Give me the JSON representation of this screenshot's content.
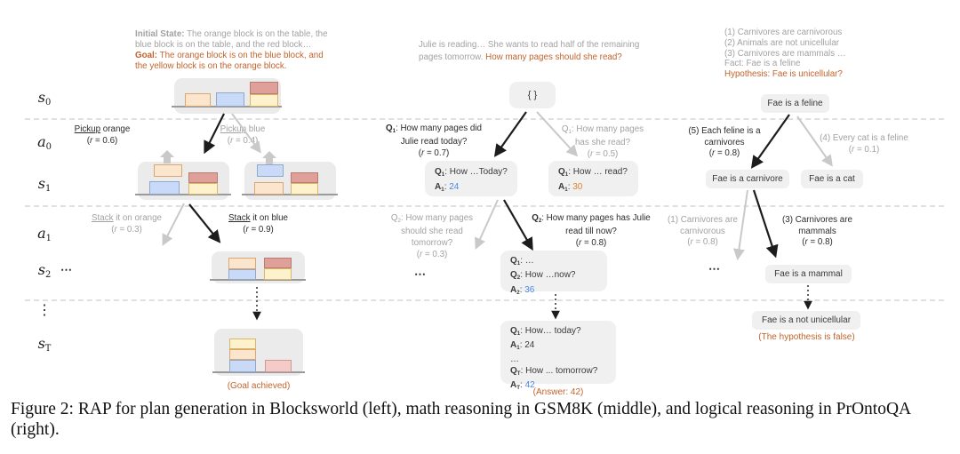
{
  "colors": {
    "gray": "#a2a2a2",
    "dark": "#2b2b2b",
    "orange": "#c2632b",
    "blue": "#4a86e8",
    "orangeval": "#e08330",
    "node_bg": "#f0f0f0",
    "container_bg": "#ebebeb",
    "block_orange": "#fce5cd",
    "block_orange_border": "#dda56f",
    "block_blue": "#c9daf8",
    "block_blue_border": "#8fa8cc",
    "block_red": "#dfa09a",
    "block_red_border": "#b97a72",
    "block_yellow": "#fdf2cc",
    "block_yellow_border": "#d8b868",
    "block_pink": "#f5cbc8",
    "block_pink_border": "#cc9a94",
    "arrow_dark": "#1c1c1c",
    "arrow_light": "#c9c9c9",
    "table_line": "#9a9a9a",
    "separator": "#e0e0e0"
  },
  "rows": [
    [
      [
        {
          "t": "s",
          "i": 1
        },
        {
          "t": "0",
          "sub": 1
        }
      ]
    ],
    [
      [
        {
          "t": "a",
          "i": 1
        },
        {
          "t": "0",
          "sub": 1
        }
      ]
    ],
    [
      [
        {
          "t": "s",
          "i": 1
        },
        {
          "t": "1",
          "sub": 1
        }
      ]
    ],
    [
      [
        {
          "t": "a",
          "i": 1
        },
        {
          "t": "1",
          "sub": 1
        }
      ]
    ],
    [
      [
        {
          "t": "s",
          "i": 1
        },
        {
          "t": "2",
          "sub": 1
        }
      ]
    ],
    [
      [
        {
          "t": "⋮"
        }
      ]
    ],
    [
      [
        {
          "t": "s",
          "i": 1
        },
        {
          "t": "T",
          "sub": 1
        }
      ]
    ]
  ],
  "blocksworld": {
    "header": [
      [
        {
          "t": "Initial State:",
          "b": 1,
          "c": "gray"
        },
        {
          "t": " The orange block is on the table, the",
          "c": "gray"
        }
      ],
      [
        {
          "t": "blue block is on the table, and the red block…",
          "c": "gray"
        }
      ],
      [
        {
          "t": "Goal:",
          "b": 1,
          "c": "orange"
        },
        {
          "t": " The orange block is on the blue block, and",
          "c": "orange"
        }
      ],
      [
        {
          "t": "the yellow block is on the orange block.",
          "c": "orange"
        }
      ]
    ],
    "a0_left": [
      [
        {
          "t": "Pickup",
          "u": 1
        },
        {
          "t": " orange"
        }
      ],
      [
        {
          "t": "("
        },
        {
          "t": "r",
          "i": 1
        },
        {
          "t": " = 0.6)"
        }
      ]
    ],
    "a0_right": [
      [
        {
          "t": "Pickup",
          "u": 1
        },
        {
          "t": " blue"
        }
      ],
      [
        {
          "t": "("
        },
        {
          "t": "r",
          "i": 1
        },
        {
          "t": " = 0.4)"
        }
      ]
    ],
    "a1_left": [
      [
        {
          "t": "Stack",
          "u": 1
        },
        {
          "t": " it on orange"
        }
      ],
      [
        {
          "t": "("
        },
        {
          "t": "r",
          "i": 1
        },
        {
          "t": " = 0.3)"
        }
      ]
    ],
    "a1_right": [
      [
        {
          "t": "Stack",
          "u": 1
        },
        {
          "t": " it on blue"
        }
      ],
      [
        {
          "t": "("
        },
        {
          "t": "r",
          "i": 1
        },
        {
          "t": " = 0.9)"
        }
      ]
    ],
    "ellipsis": "⋯",
    "goal_achieved": "(Goal achieved)"
  },
  "gsm8k": {
    "header": [
      [
        {
          "t": "Julie is reading… She wants to read half of the remaining",
          "c": "gray"
        }
      ],
      [
        {
          "t": "pages tomorrow. ",
          "c": "gray"
        },
        {
          "t": "How many pages should she read?",
          "c": "orange"
        }
      ]
    ],
    "root": "{ }",
    "a0_left": [
      [
        {
          "t": "Q",
          "b": 1
        },
        {
          "t": "1",
          "b": 1,
          "sub": 1
        },
        {
          "t": ": How many pages did"
        }
      ],
      [
        {
          "t": "Julie read today?"
        }
      ],
      [
        {
          "t": "("
        },
        {
          "t": "r",
          "i": 1
        },
        {
          "t": " = 0.7)"
        }
      ]
    ],
    "a0_right": [
      [
        {
          "t": "Q"
        },
        {
          "t": "1",
          "sub": 1
        },
        {
          "t": ": How many pages"
        }
      ],
      [
        {
          "t": "has she read?"
        }
      ],
      [
        {
          "t": "("
        },
        {
          "t": "r",
          "i": 1
        },
        {
          "t": " = 0.5)"
        }
      ]
    ],
    "node_s1_left": [
      [
        {
          "t": "Q",
          "b": 1
        },
        {
          "t": "1",
          "b": 1,
          "sub": 1
        },
        {
          "t": ": How …Today?"
        }
      ],
      [
        {
          "t": "A",
          "b": 1
        },
        {
          "t": "1",
          "b": 1,
          "sub": 1
        },
        {
          "t": ": "
        },
        {
          "t": "24",
          "c": "blue"
        }
      ]
    ],
    "node_s1_right": [
      [
        {
          "t": "Q",
          "b": 1
        },
        {
          "t": "1",
          "b": 1,
          "sub": 1
        },
        {
          "t": ": How … read?"
        }
      ],
      [
        {
          "t": "A",
          "b": 1
        },
        {
          "t": "1",
          "b": 1,
          "sub": 1
        },
        {
          "t": ": "
        },
        {
          "t": "30",
          "c": "orangeval"
        }
      ]
    ],
    "a1_left": [
      [
        {
          "t": "Q"
        },
        {
          "t": "2",
          "sub": 1
        },
        {
          "t": ": How many pages"
        }
      ],
      [
        {
          "t": "should she read"
        }
      ],
      [
        {
          "t": "tomorrow?"
        }
      ],
      [
        {
          "t": "("
        },
        {
          "t": "r",
          "i": 1
        },
        {
          "t": " = 0.3)"
        }
      ]
    ],
    "a1_right": [
      [
        {
          "t": "Q",
          "b": 1
        },
        {
          "t": "2",
          "b": 1,
          "sub": 1
        },
        {
          "t": ": How many pages has Julie"
        }
      ],
      [
        {
          "t": "read till now?"
        }
      ],
      [
        {
          "t": "("
        },
        {
          "t": "r",
          "i": 1
        },
        {
          "t": " = 0.8)"
        }
      ]
    ],
    "ellipsis": "⋯",
    "node_s2": [
      [
        {
          "t": "Q",
          "b": 1
        },
        {
          "t": "1",
          "b": 1,
          "sub": 1
        },
        {
          "t": ": …"
        }
      ],
      [
        {
          "t": "Q",
          "b": 1
        },
        {
          "t": "2",
          "b": 1,
          "sub": 1
        },
        {
          "t": ": How …now?"
        }
      ],
      [
        {
          "t": "A",
          "b": 1
        },
        {
          "t": "2",
          "b": 1,
          "sub": 1
        },
        {
          "t": ": "
        },
        {
          "t": "36",
          "c": "blue"
        }
      ]
    ],
    "node_sT": [
      [
        {
          "t": "Q",
          "b": 1
        },
        {
          "t": "1",
          "b": 1,
          "sub": 1
        },
        {
          "t": ":  How… today?"
        }
      ],
      [
        {
          "t": "A",
          "b": 1
        },
        {
          "t": "1",
          "b": 1,
          "sub": 1
        },
        {
          "t": ": 24"
        }
      ],
      [
        {
          "t": "…"
        }
      ],
      [
        {
          "t": "Q",
          "b": 1
        },
        {
          "t": "T",
          "b": 1,
          "sub": 1
        },
        {
          "t": ": How ... tomorrow?"
        }
      ],
      [
        {
          "t": "A",
          "b": 1
        },
        {
          "t": "T",
          "b": 1,
          "sub": 1
        },
        {
          "t": ": "
        },
        {
          "t": "42",
          "c": "blue"
        }
      ]
    ],
    "answer": "(Answer: 42)"
  },
  "prontoqa": {
    "header": [
      [
        {
          "t": "(1) Carnivores are carnivorous",
          "c": "gray"
        }
      ],
      [
        {
          "t": "(2) Animals are not unicellular",
          "c": "gray"
        }
      ],
      [
        {
          "t": "(3) Carnivores are mammals …",
          "c": "gray"
        }
      ],
      [
        {
          "t": "Fact: Fae is a feline",
          "c": "gray"
        }
      ],
      [
        {
          "t": "Hypothesis: Fae is unicellular?",
          "c": "orange"
        }
      ]
    ],
    "root": "Fae is a feline",
    "a0_left": [
      [
        {
          "t": "(5) Each feline is a"
        }
      ],
      [
        {
          "t": "carnivores"
        }
      ],
      [
        {
          "t": "("
        },
        {
          "t": "r",
          "i": 1
        },
        {
          "t": " = 0.8)"
        }
      ]
    ],
    "a0_right": [
      [
        {
          "t": "(4) Every cat is a feline"
        }
      ],
      [
        {
          "t": "("
        },
        {
          "t": "r",
          "i": 1
        },
        {
          "t": " = 0.1)"
        }
      ]
    ],
    "node_carnivore": "Fae is a carnivore",
    "node_cat": "Fae is a cat",
    "a1_left": [
      [
        {
          "t": "(1) Carnivores are"
        }
      ],
      [
        {
          "t": "carnivorous"
        }
      ],
      [
        {
          "t": "("
        },
        {
          "t": "r",
          "i": 1
        },
        {
          "t": " = 0.8)"
        }
      ]
    ],
    "a1_right": [
      [
        {
          "t": "(3) Carnivores are"
        }
      ],
      [
        {
          "t": "mammals"
        }
      ],
      [
        {
          "t": "("
        },
        {
          "t": "r",
          "i": 1
        },
        {
          "t": " = 0.8)"
        }
      ]
    ],
    "ellipsis": "⋯",
    "node_mammal": "Fae is a mammal",
    "node_unicellular": "Fae is a not unicellular",
    "conclusion": "(The hypothesis is false)"
  },
  "caption": "Figure 2: RAP for plan generation in Blocksworld (left), math reasoning in GSM8K (middle), and logical reasoning in PrOntoQA (right)."
}
